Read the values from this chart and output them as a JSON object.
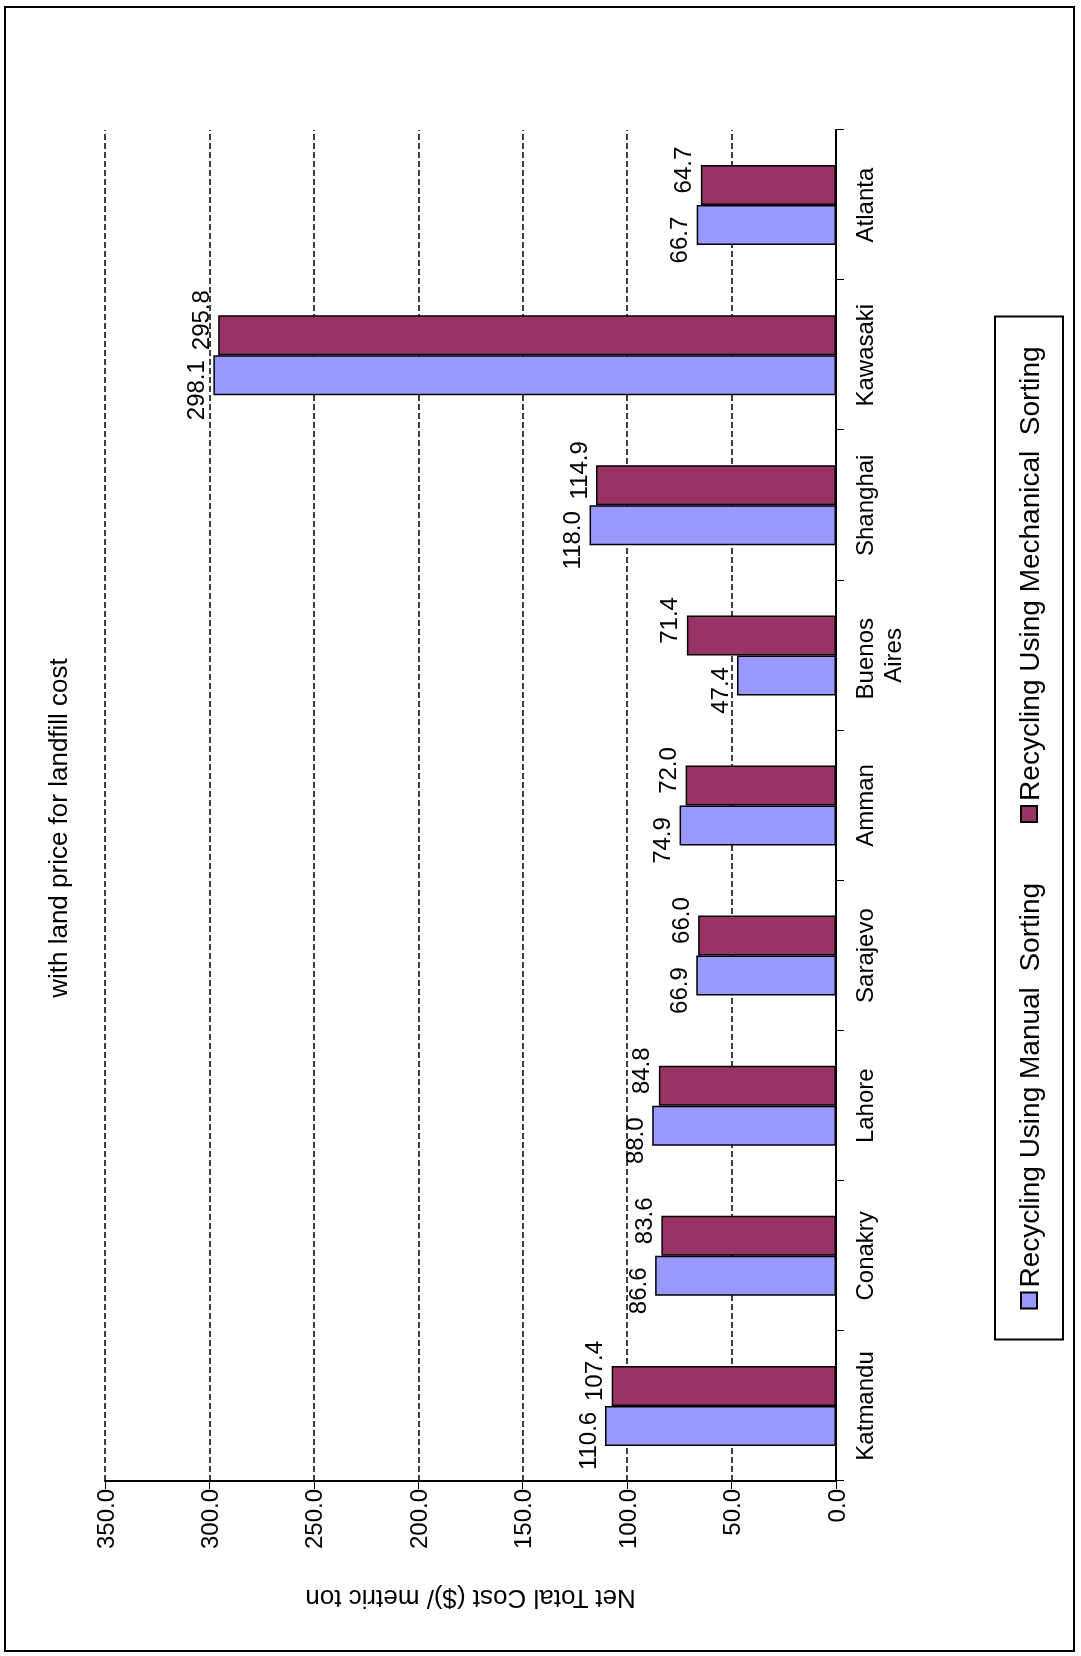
{
  "chart_data": {
    "type": "bar",
    "orientation": "horizontal",
    "title": "with land price for landfill cost",
    "xlabel": "Net Total Cost ($)/ metric ton",
    "categories": [
      "Atlanta",
      "Kawasaki",
      "Shanghai",
      "Buenos Aires",
      "Amman",
      "Sarajevo",
      "Lahore",
      "Conakry",
      "Katmandu"
    ],
    "series": [
      {
        "name": "Recycling Using Manual  Sorting",
        "color": "#9999ff",
        "values": [
          66.7,
          298.1,
          118.0,
          47.4,
          74.9,
          66.9,
          88.0,
          86.6,
          110.6
        ],
        "value_labels": [
          "66.7",
          "298.1",
          "118.0",
          "47.4",
          "74.9",
          "66.9",
          "88.0",
          "86.6",
          "110.6"
        ]
      },
      {
        "name": "Recycling Using Mechanical  Sorting",
        "color": "#993366",
        "values": [
          64.7,
          295.8,
          114.9,
          71.4,
          72.0,
          66.0,
          84.8,
          83.6,
          107.4
        ],
        "value_labels": [
          "64.7",
          "295.8",
          "114.9",
          "71.4",
          "72.0",
          "66.0",
          "84.8",
          "83.6",
          "107.4"
        ]
      }
    ],
    "xlim": [
      350,
      0
    ],
    "xticks": [
      {
        "value": 350,
        "label": "350.0"
      },
      {
        "value": 300,
        "label": "300.0"
      },
      {
        "value": 250,
        "label": "250.0"
      },
      {
        "value": 200,
        "label": "200.0"
      },
      {
        "value": 150,
        "label": "150.0"
      },
      {
        "value": 100,
        "label": "100.0"
      },
      {
        "value": 50,
        "label": "50.0"
      },
      {
        "value": 0,
        "label": "0.0"
      }
    ],
    "grid": "x",
    "legend": "right"
  }
}
